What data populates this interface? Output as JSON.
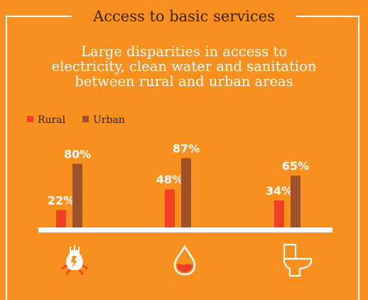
{
  "heading": "Access to basic services",
  "subtitle_lines": [
    "Large disparities in access to",
    "electricity, clean water and sanitation",
    "between rural and urban areas"
  ],
  "colors": {
    "background": "#F7901E",
    "rural": "#EF4123",
    "urban": "#A0522D",
    "baseline": "#FFFFFF",
    "text_dark": "#3A1E0E"
  },
  "chart_data": {
    "type": "bar",
    "categories": [
      "electricity-icon",
      "water-drop-icon",
      "toilet-icon"
    ],
    "series": [
      {
        "name": "Rural",
        "values": [
          22,
          48,
          34
        ],
        "labels": [
          "22%",
          "48%",
          "34%"
        ]
      },
      {
        "name": "Urban",
        "values": [
          80,
          87,
          65
        ],
        "labels": [
          "80%",
          "87%",
          "65%"
        ]
      }
    ],
    "ylim": [
      0,
      100
    ],
    "legend": "top-left",
    "grid": false
  }
}
